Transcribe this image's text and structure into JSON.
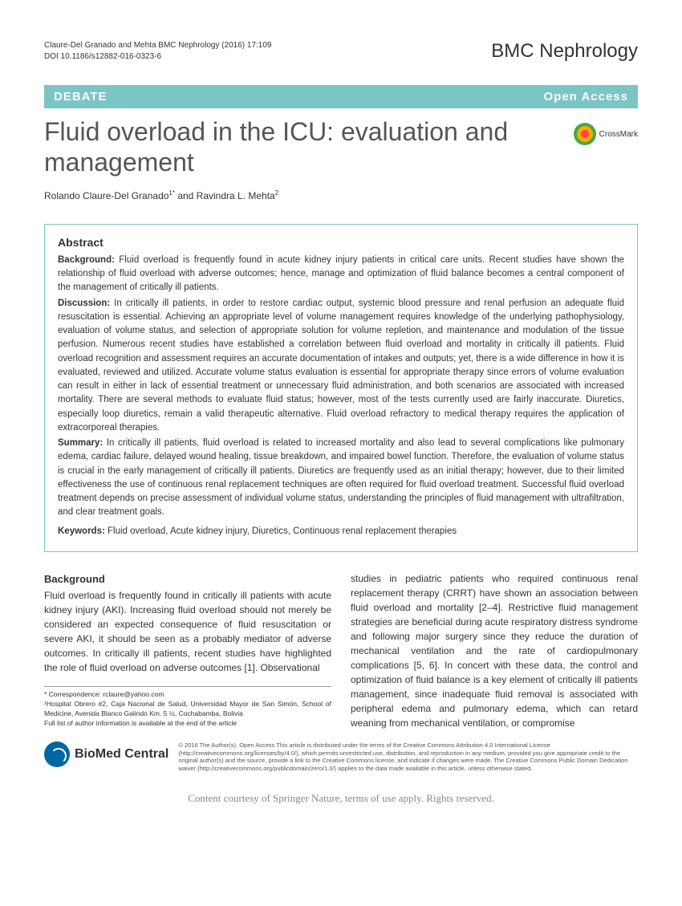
{
  "header": {
    "citation_line1": "Claure-Del Granado and Mehta BMC Nephrology (2016) 17:109",
    "citation_line2": "DOI 10.1186/s12882-016-0323-6",
    "journal": "BMC Nephrology"
  },
  "banner": {
    "left": "DEBATE",
    "right": "Open Access"
  },
  "title": "Fluid overload in the ICU: evaluation and management",
  "crossmark_label": "CrossMark",
  "authors_html": "Rolando Claure-Del Granado<sup>1*</sup> and Ravindra L. Mehta<sup>2</sup>",
  "abstract": {
    "heading": "Abstract",
    "background_label": "Background:",
    "background_text": " Fluid overload is frequently found in acute kidney injury patients in critical care units. Recent studies have shown the relationship of fluid overload with adverse outcomes; hence, manage and optimization of fluid balance becomes a central component of the management of critically ill patients.",
    "discussion_label": "Discussion:",
    "discussion_text": " In critically ill patients, in order to restore cardiac output, systemic blood pressure and renal perfusion an adequate fluid resuscitation is essential. Achieving an appropriate level of volume management requires knowledge of the underlying pathophysiology, evaluation of volume status, and selection of appropriate solution for volume repletion, and maintenance and modulation of the tissue perfusion. Numerous recent studies have established a correlation between fluid overload and mortality in critically ill patients. Fluid overload recognition and assessment requires an accurate documentation of intakes and outputs; yet, there is a wide difference in how it is evaluated, reviewed and utilized. Accurate volume status evaluation is essential for appropriate therapy since errors of volume evaluation can result in either in lack of essential treatment or unnecessary fluid administration, and both scenarios are associated with increased mortality. There are several methods to evaluate fluid status; however, most of the tests currently used are fairly inaccurate. Diuretics, especially loop diuretics, remain a valid therapeutic alternative. Fluid overload refractory to medical therapy requires the application of extracorporeal therapies.",
    "summary_label": "Summary:",
    "summary_text": " In critically ill patients, fluid overload is related to increased mortality and also lead to several complications like pulmonary edema, cardiac failure, delayed wound healing, tissue breakdown, and impaired bowel function. Therefore, the evaluation of volume status is crucial in the early management of critically ill patients. Diuretics are frequently used as an initial therapy; however, due to their limited effectiveness the use of continuous renal replacement techniques are often required for fluid overload treatment. Successful fluid overload treatment depends on precise assessment of individual volume status, understanding the principles of fluid management with ultrafiltration, and clear treatment goals.",
    "keywords_label": "Keywords:",
    "keywords_text": " Fluid overload, Acute kidney injury, Diuretics, Continuous renal replacement therapies"
  },
  "body": {
    "section_heading": "Background",
    "col1": "Fluid overload is frequently found in critically ill patients with acute kidney injury (AKI). Increasing fluid overload should not merely be considered an expected consequence of fluid resuscitation or severe AKI, it should be seen as a probably mediator of adverse outcomes. In critically ill patients, recent studies have highlighted the role of fluid overload on adverse outcomes [1]. Observational",
    "col2": "studies in pediatric patients who required continuous renal replacement therapy (CRRT) have shown an association between fluid overload and mortality [2–4]. Restrictive fluid management strategies are beneficial during acute respiratory distress syndrome and following major surgery since they reduce the duration of mechanical ventilation and the rate of cardiopulmonary complications [5, 6]. In concert with these data, the control and optimization of fluid balance is a key element of critically ill patients management, since inadequate fluid removal is associated with peripheral edema and pulmonary edema, which can retard weaning from mechanical ventilation, or compromise"
  },
  "correspondence": {
    "line1": "* Correspondence: rclaure@yahoo.com",
    "line2": "¹Hospital Obrero #2, Caja Nacional de Salud, Universidad Mayor de San Simón, School of Medicine, Avenida Blanco Galindo Km. 5 ½, Cochabamba, Bolivia",
    "line3": "Full list of author information is available at the end of the article"
  },
  "footer": {
    "logo_text": "BioMed Central",
    "license": "© 2016 The Author(s). Open Access This article is distributed under the terms of the Creative Commons Attribution 4.0 International License (http://creativecommons.org/licenses/by/4.0/), which permits unrestricted use, distribution, and reproduction in any medium, provided you give appropriate credit to the original author(s) and the source, provide a link to the Creative Commons license, and indicate if changes were made. The Creative Commons Public Domain Dedication waiver (http://creativecommons.org/publicdomain/zero/1.0/) applies to the data made available in this article, unless otherwise stated."
  },
  "bottom_note": "Content courtesy of Springer Nature, terms of use apply. Rights reserved.",
  "colors": {
    "accent": "#7bc5c5",
    "text": "#333333",
    "muted": "#888888",
    "biomed_blue": "#0066a4"
  }
}
